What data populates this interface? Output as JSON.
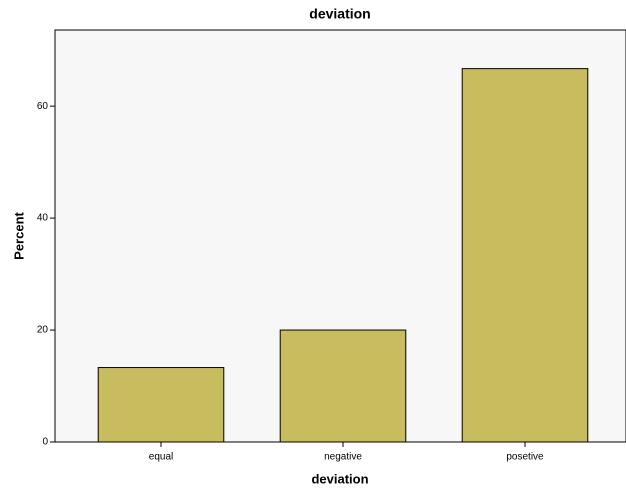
{
  "chart_data": {
    "type": "bar",
    "title": "deviation",
    "x_label": "deviation",
    "y_label": "Percent",
    "categories": [
      "equal",
      "negative",
      "posetive"
    ],
    "values": [
      13.3,
      20.0,
      66.7
    ],
    "color": "#c8bd5e",
    "ylim": [
      0,
      73.6
    ],
    "yticks": [
      0,
      20,
      40,
      60
    ],
    "grid": false
  }
}
